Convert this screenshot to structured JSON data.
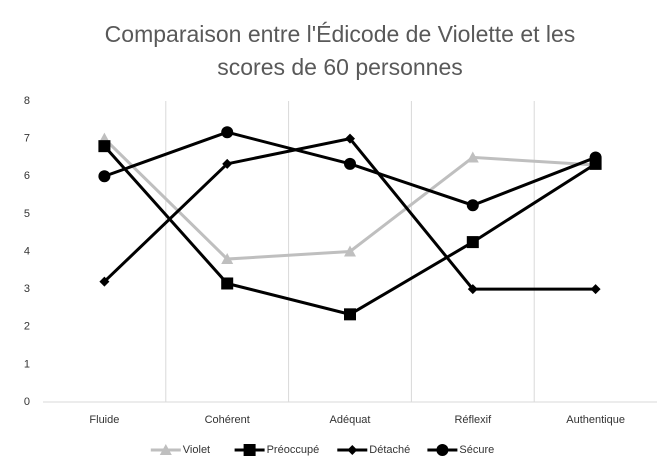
{
  "chart_data": {
    "type": "line",
    "title": "Comparaison entre l'Édicode de Violette et les scores de 60 personnes",
    "categories": [
      "Fluide",
      "Cohérent",
      "Adéquat",
      "Réflexif",
      "Authentique"
    ],
    "series": [
      {
        "name": "Violet",
        "color": "#bfbfbf",
        "marker": "triangle",
        "values": [
          7.0,
          3.8,
          4.0,
          6.5,
          6.3
        ]
      },
      {
        "name": "Préoccupé",
        "color": "#000000",
        "marker": "square",
        "values": [
          6.8,
          3.15,
          2.33,
          4.25,
          6.33
        ]
      },
      {
        "name": "Détaché",
        "color": "#000000",
        "marker": "diamond",
        "values": [
          3.2,
          6.33,
          7.0,
          3.0,
          3.0
        ]
      },
      {
        "name": "Sécure",
        "color": "#000000",
        "marker": "circle",
        "values": [
          6.0,
          7.17,
          6.33,
          5.23,
          6.5
        ]
      }
    ],
    "ylim": [
      0,
      8
    ],
    "yticks": [
      0,
      1,
      2,
      3,
      4,
      5,
      6,
      7,
      8
    ]
  }
}
